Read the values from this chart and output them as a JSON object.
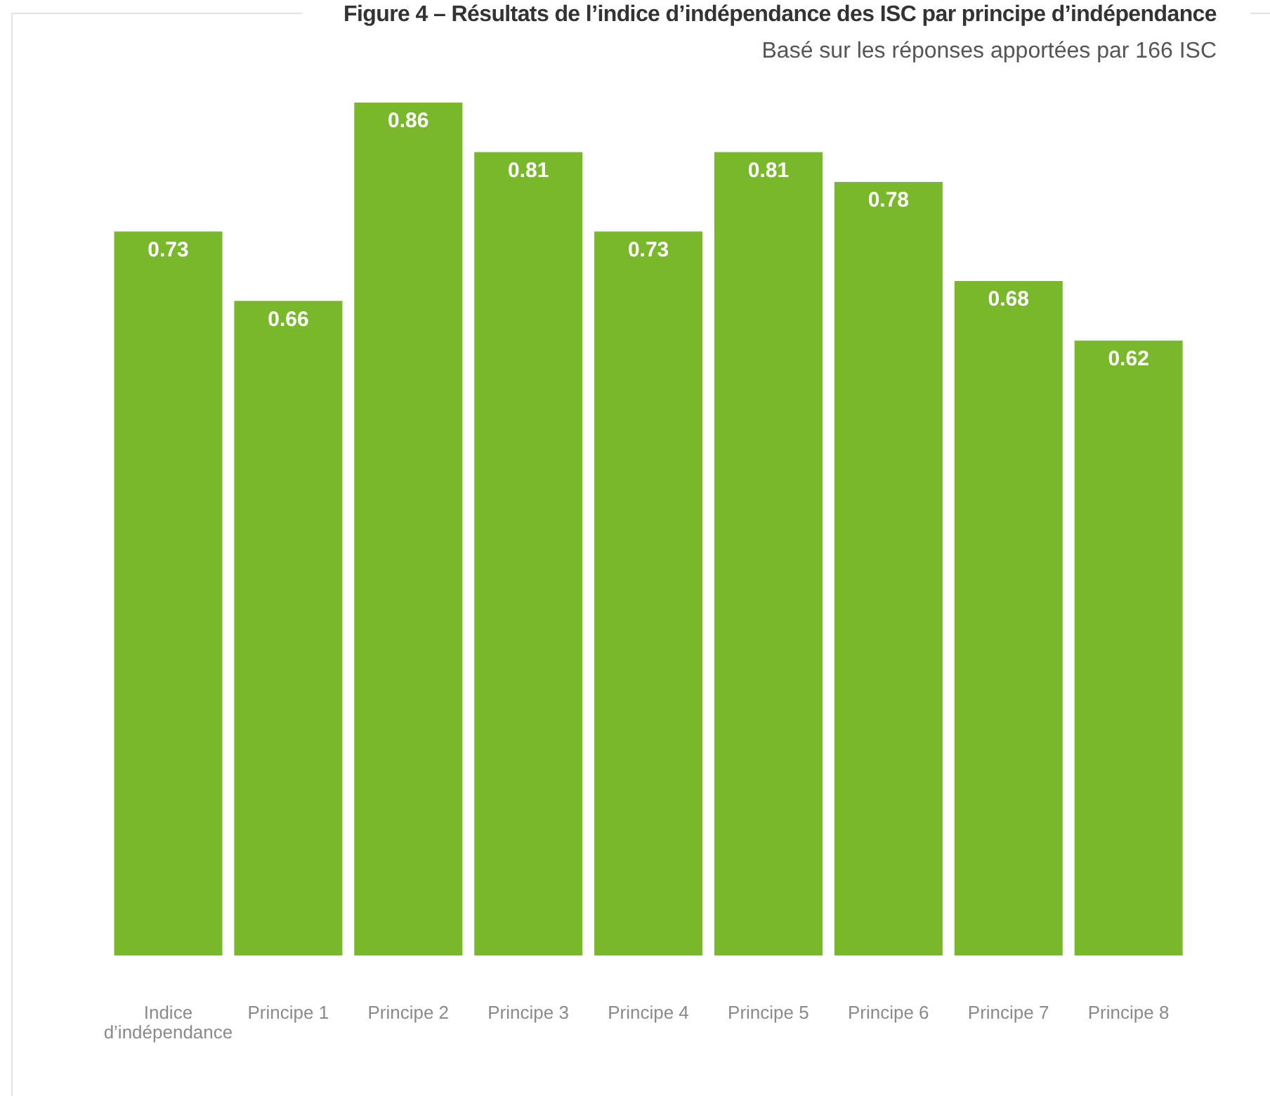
{
  "chart_data": {
    "type": "bar",
    "title": "Figure 4 – Résultats de l’indice d’indépendance des ISC par principe d’indépendance",
    "subtitle": "Basé sur les réponses apportées par 166 ISC",
    "categories": [
      "Indice d’indépendance",
      "Principe 1",
      "Principe 2",
      "Principe 3",
      "Principe 4",
      "Principe 5",
      "Principe 6",
      "Principe 7",
      "Principe 8"
    ],
    "values": [
      0.73,
      0.66,
      0.86,
      0.81,
      0.73,
      0.81,
      0.78,
      0.68,
      0.62
    ],
    "color": "#79b82b",
    "data_labels": true,
    "tick_labels": "x"
  }
}
